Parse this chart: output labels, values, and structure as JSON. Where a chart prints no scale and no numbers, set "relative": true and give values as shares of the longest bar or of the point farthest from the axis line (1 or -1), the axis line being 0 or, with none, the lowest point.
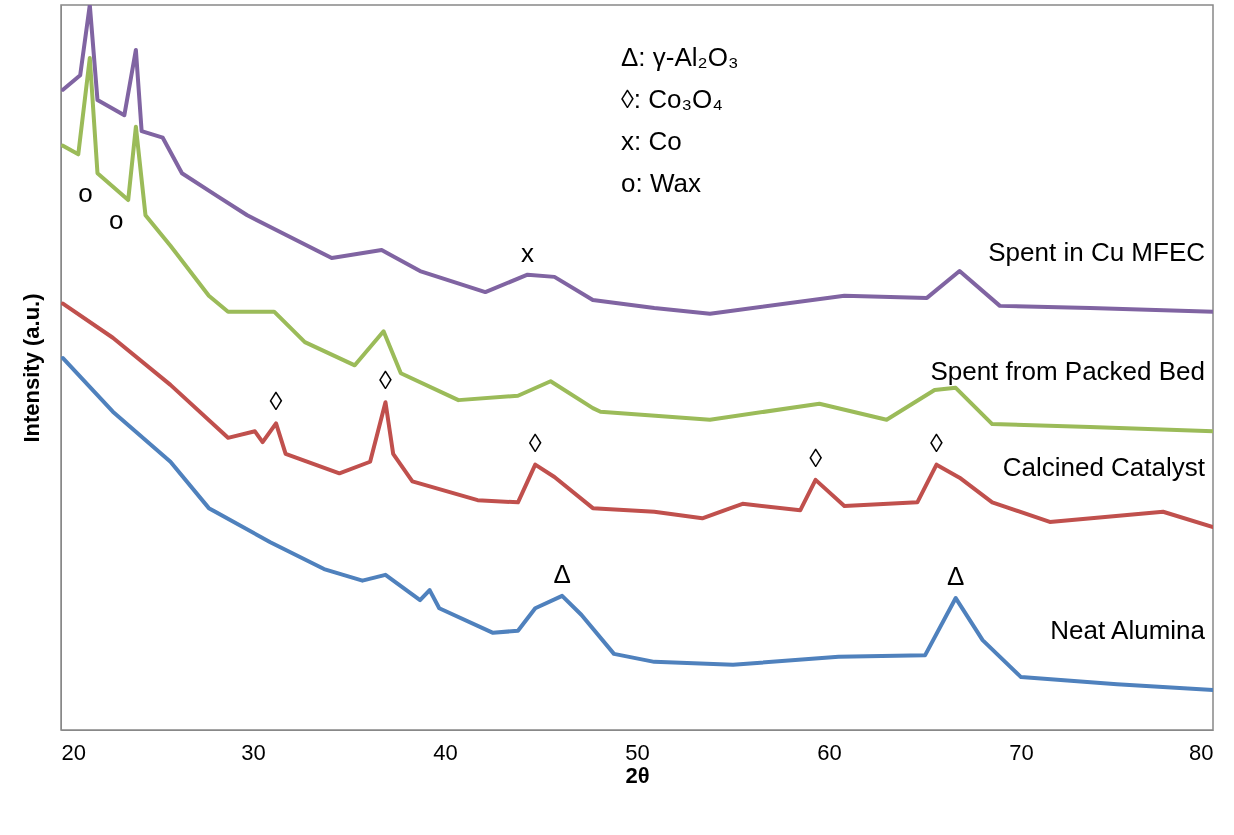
{
  "chart_data": {
    "type": "line",
    "relative": true,
    "xlabel": "2θ",
    "ylabel": "Intensity (a.u.)",
    "xlim": [
      20,
      80
    ],
    "xticks": [
      20,
      30,
      40,
      50,
      60,
      70,
      80
    ],
    "grid": false,
    "line_style": "solid",
    "marker": "none",
    "series": [
      {
        "name": "Spent in Cu MFEC",
        "color": "#8064a2",
        "x": [
          20.1,
          21.0,
          21.5,
          21.9,
          23.3,
          23.9,
          24.2,
          25.3,
          26.3,
          28.1,
          29.7,
          31.7,
          34.1,
          36.7,
          38.7,
          42.1,
          44.3,
          45.7,
          47.7,
          50.9,
          53.8,
          60.8,
          65.1,
          66.8,
          68.9,
          73.6,
          80
        ],
        "values": [
          0.883,
          0.903,
          1.0,
          0.869,
          0.848,
          0.938,
          0.826,
          0.817,
          0.768,
          0.737,
          0.71,
          0.683,
          0.651,
          0.662,
          0.633,
          0.604,
          0.628,
          0.625,
          0.593,
          0.582,
          0.574,
          0.599,
          0.596,
          0.633,
          0.585,
          0.582,
          0.577
        ]
      },
      {
        "name": "Spent from Packed Bed",
        "color": "#9bbb59",
        "x": [
          20.1,
          20.9,
          21.5,
          21.9,
          23.5,
          23.9,
          24.4,
          25.7,
          27.7,
          28.7,
          31.1,
          32.7,
          35.3,
          36.8,
          37.7,
          40.7,
          43.8,
          45.5,
          47.7,
          48.1,
          53.8,
          59.5,
          63.0,
          65.5,
          66.6,
          68.5,
          73.6,
          80
        ],
        "values": [
          0.806,
          0.794,
          0.927,
          0.768,
          0.731,
          0.832,
          0.71,
          0.668,
          0.599,
          0.577,
          0.577,
          0.535,
          0.503,
          0.55,
          0.492,
          0.455,
          0.461,
          0.481,
          0.444,
          0.439,
          0.428,
          0.45,
          0.428,
          0.469,
          0.472,
          0.422,
          0.418,
          0.412
        ]
      },
      {
        "name": "Calcined Catalyst",
        "color": "#c0504d",
        "x": [
          20.1,
          22.7,
          25.7,
          28.7,
          30.1,
          30.5,
          31.2,
          31.7,
          34.5,
          36.1,
          36.9,
          37.3,
          38.3,
          41.7,
          43.8,
          44.7,
          45.7,
          47.7,
          50.9,
          53.4,
          55.5,
          58.5,
          59.3,
          60.8,
          64.6,
          65.6,
          66.8,
          68.5,
          71.5,
          77.4,
          80
        ],
        "values": [
          0.588,
          0.541,
          0.476,
          0.403,
          0.412,
          0.397,
          0.423,
          0.381,
          0.354,
          0.37,
          0.452,
          0.381,
          0.343,
          0.317,
          0.314,
          0.366,
          0.349,
          0.306,
          0.301,
          0.292,
          0.312,
          0.303,
          0.345,
          0.309,
          0.314,
          0.366,
          0.348,
          0.314,
          0.287,
          0.301,
          0.28
        ]
      },
      {
        "name": "Neat Alumina",
        "color": "#4f81bd",
        "x": [
          20.1,
          22.7,
          25.7,
          27.7,
          30.9,
          33.7,
          35.7,
          36.9,
          38.7,
          39.2,
          39.7,
          42.5,
          43.8,
          44.7,
          46.1,
          47.1,
          48.8,
          50.9,
          55,
          60.5,
          65,
          66.6,
          68,
          70,
          75,
          80
        ],
        "values": [
          0.513,
          0.439,
          0.37,
          0.306,
          0.259,
          0.222,
          0.206,
          0.214,
          0.179,
          0.193,
          0.168,
          0.134,
          0.137,
          0.168,
          0.185,
          0.159,
          0.105,
          0.094,
          0.09,
          0.101,
          0.103,
          0.182,
          0.124,
          0.073,
          0.063,
          0.055
        ]
      }
    ],
    "annotations": [
      "Δ:  γ-Al₂O₃",
      "◊:  Co₃O₄",
      "x:  Co",
      "o:  Wax",
      {
        "text": "Δ",
        "x": 46.1,
        "y": 0.185
      },
      {
        "text": "Δ",
        "x": 66.6,
        "y": 0.182
      },
      {
        "text": "◊",
        "x": 31.2,
        "y": 0.423
      },
      {
        "text": "◊",
        "x": 36.9,
        "y": 0.452
      },
      {
        "text": "◊",
        "x": 44.7,
        "y": 0.366
      },
      {
        "text": "◊",
        "x": 59.3,
        "y": 0.345
      },
      {
        "text": "◊",
        "x": 65.6,
        "y": 0.366
      },
      {
        "text": "x",
        "x": 44.3,
        "y": 0.628
      },
      {
        "text": "o",
        "x": 21.9,
        "y": 0.768
      },
      {
        "text": "o",
        "x": 23.5,
        "y": 0.731
      }
    ]
  }
}
